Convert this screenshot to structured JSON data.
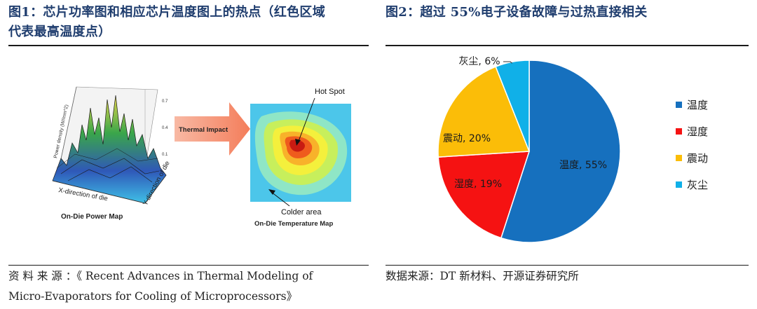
{
  "left_figure": {
    "title_line1": "图1：芯片功率图和相应芯片温度图上的热点（红色区域",
    "title_line2": "代表最高温度点）",
    "image": {
      "power_axis_label": "Power density (W/mm^2)",
      "power_ticks": [
        "0.7",
        "0.4",
        "0.1"
      ],
      "x_axis_label": "X-direction of die",
      "y_axis_label": "Y-direction of die",
      "power_map_caption": "On-Die Power Map",
      "arrow_label": "Thermal Impact",
      "hot_spot_label": "Hot Spot",
      "colder_area_label": "Colder area",
      "temp_map_caption": "On-Die Temperature Map"
    },
    "source": "资 料 来 源 ：《 Recent   Advances   in   Thermal   Modeling   of",
    "source_line2": "Micro-Evaporators for Cooling of Microprocessors》"
  },
  "right_figure": {
    "title": "图2：超过 55%电子设备故障与过热直接相关",
    "source": "数据来源：DT 新材料、开源证券研究所"
  },
  "chart_data": {
    "type": "pie",
    "title": "",
    "slices": [
      {
        "name": "温度",
        "value": 55,
        "label": "温度, 55%",
        "color": "#1670be"
      },
      {
        "name": "湿度",
        "value": 19,
        "label": "湿度, 19%",
        "color": "#f51212"
      },
      {
        "name": "震动",
        "value": 20,
        "label": "震动, 20%",
        "color": "#fbbd08"
      },
      {
        "name": "灰尘",
        "value": 6,
        "label": "灰尘, 6%",
        "color": "#10b0e8"
      }
    ],
    "legend": [
      "温度",
      "湿度",
      "震动",
      "灰尘"
    ],
    "legend_position": "right"
  }
}
